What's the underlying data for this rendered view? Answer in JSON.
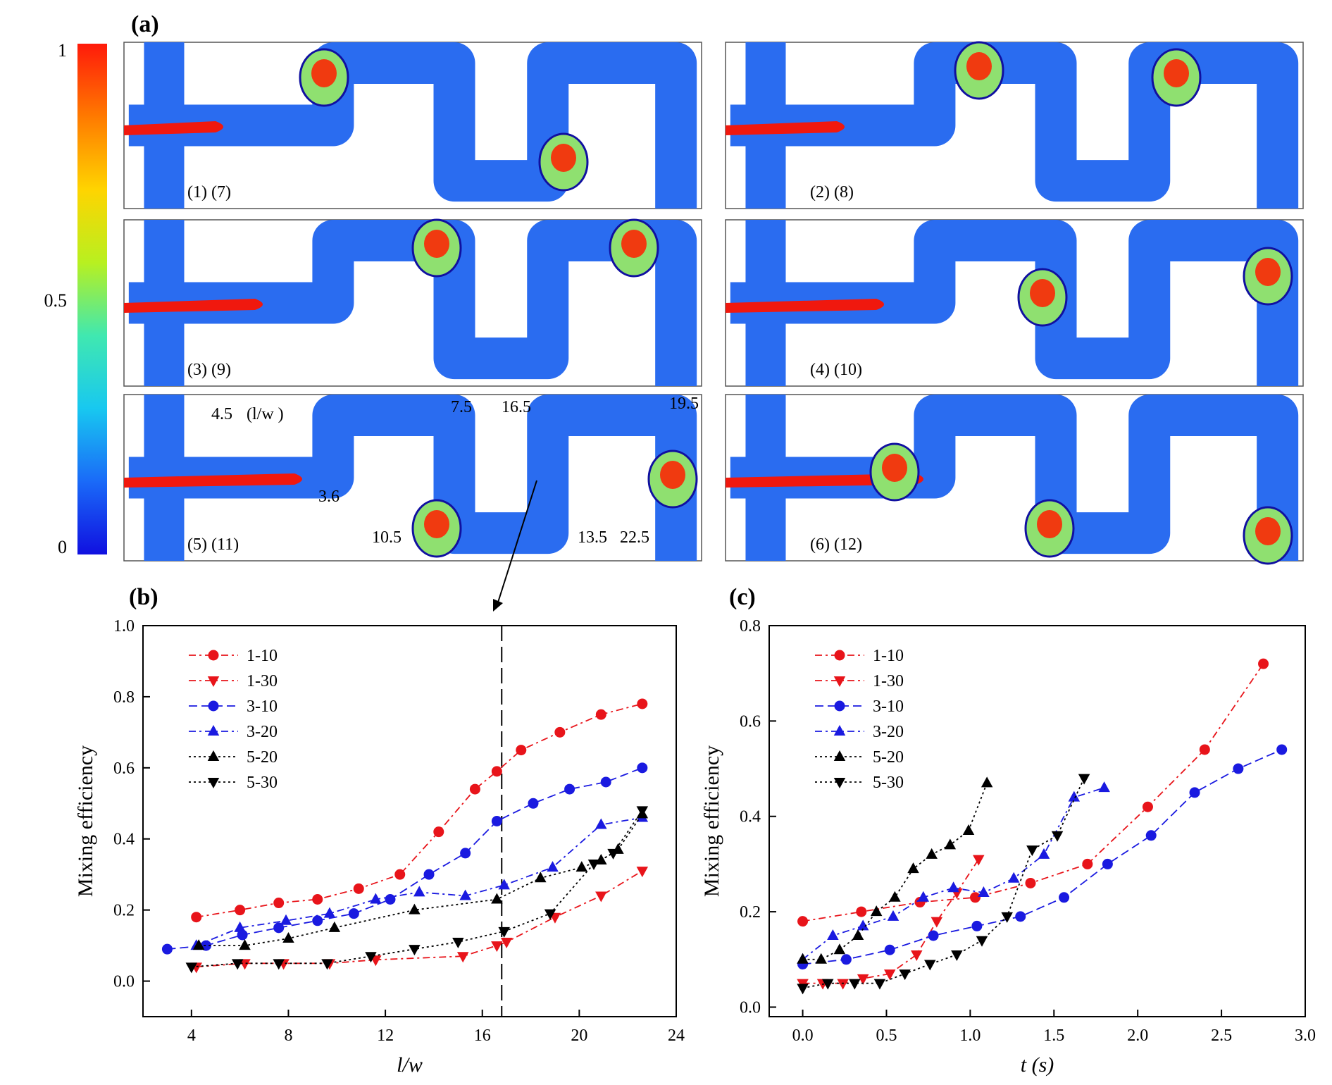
{
  "panel_labels": {
    "a": "(a)",
    "b": "(b)",
    "c": "(c)"
  },
  "colorbar": {
    "ticks": [
      "1",
      "0.5",
      "0"
    ],
    "stops": [
      "#ff1a0a",
      "#ff7a00",
      "#ffd400",
      "#b8f020",
      "#40e8b0",
      "#18c8f0",
      "#1a6af8",
      "#1010e0"
    ]
  },
  "images": [
    {
      "id": 1,
      "labels": [
        "(1)",
        "(7)"
      ]
    },
    {
      "id": 2,
      "labels": [
        "(2)",
        "(8)"
      ]
    },
    {
      "id": 3,
      "labels": [
        "(3)",
        "(9)"
      ]
    },
    {
      "id": 4,
      "labels": [
        "(4)",
        "(10)"
      ]
    },
    {
      "id": 5,
      "labels": [
        "(5)",
        "(11)"
      ],
      "annotations": [
        "4.5",
        "(l/w )",
        "3.6",
        "7.5",
        "10.5",
        "16.5",
        "13.5",
        "19.5",
        "22.5"
      ]
    },
    {
      "id": 6,
      "labels": [
        "(6)",
        "(12)"
      ]
    }
  ],
  "colors": {
    "red": "#e8141a",
    "blue": "#1a1ae0",
    "black": "#000000",
    "channel": "#2a6cf0"
  },
  "chart_data": [
    {
      "id": "b",
      "type": "line",
      "xlabel": "l/w",
      "ylabel": "Mixing efficiency",
      "xlim": [
        2,
        24
      ],
      "ylim": [
        -0.1,
        1.0
      ],
      "xticks": [
        "4",
        "8",
        "12",
        "16",
        "20",
        "24"
      ],
      "yticks": [
        "0.0",
        "0.2",
        "0.4",
        "0.6",
        "0.8",
        "1.0"
      ],
      "vline": 16.8,
      "legend_position": "top-left",
      "series": [
        {
          "name": "1-10",
          "color": "#e8141a",
          "marker": "circle",
          "dash": "dashdot",
          "x": [
            4.2,
            6.0,
            7.6,
            9.2,
            10.9,
            12.6,
            14.2,
            15.7,
            16.6,
            17.6,
            19.2,
            20.9,
            22.6
          ],
          "y": [
            0.18,
            0.2,
            0.22,
            0.23,
            0.26,
            0.3,
            0.42,
            0.54,
            0.59,
            0.65,
            0.7,
            0.75,
            0.78
          ]
        },
        {
          "name": "1-30",
          "color": "#e8141a",
          "marker": "triangle-down",
          "dash": "dashdot",
          "x": [
            4.2,
            6.2,
            7.8,
            9.7,
            11.6,
            15.2,
            16.6,
            17.0,
            19.0,
            20.9,
            22.6
          ],
          "y": [
            0.04,
            0.05,
            0.05,
            0.05,
            0.06,
            0.07,
            0.1,
            0.11,
            0.18,
            0.24,
            0.31
          ]
        },
        {
          "name": "3-10",
          "color": "#1a1ae0",
          "marker": "circle",
          "dash": "dash",
          "x": [
            3.0,
            4.6,
            6.1,
            7.6,
            9.2,
            10.7,
            12.2,
            13.8,
            15.3,
            16.6,
            18.1,
            19.6,
            21.1,
            22.6
          ],
          "y": [
            0.09,
            0.1,
            0.13,
            0.15,
            0.17,
            0.19,
            0.23,
            0.3,
            0.36,
            0.45,
            0.5,
            0.54,
            0.56,
            0.6
          ]
        },
        {
          "name": "3-20",
          "color": "#1a1ae0",
          "marker": "triangle-up",
          "dash": "dashdot",
          "x": [
            4.2,
            6.0,
            7.9,
            9.7,
            11.6,
            13.4,
            15.3,
            16.9,
            18.9,
            20.9,
            22.6
          ],
          "y": [
            0.1,
            0.15,
            0.17,
            0.19,
            0.23,
            0.25,
            0.24,
            0.27,
            0.32,
            0.44,
            0.46
          ]
        },
        {
          "name": "5-20",
          "color": "#000000",
          "marker": "triangle-up",
          "dash": "dot",
          "x": [
            4.3,
            6.2,
            8.0,
            9.9,
            13.2,
            16.6,
            18.4,
            20.1,
            20.9,
            21.6,
            22.6
          ],
          "y": [
            0.1,
            0.1,
            0.12,
            0.15,
            0.2,
            0.23,
            0.29,
            0.32,
            0.34,
            0.37,
            0.47
          ]
        },
        {
          "name": "5-30",
          "color": "#000000",
          "marker": "triangle-down",
          "dash": "dot",
          "x": [
            4.0,
            5.9,
            7.6,
            9.6,
            11.4,
            13.2,
            15.0,
            16.9,
            18.8,
            20.6,
            21.4,
            22.6
          ],
          "y": [
            0.04,
            0.05,
            0.05,
            0.05,
            0.07,
            0.09,
            0.11,
            0.14,
            0.19,
            0.33,
            0.36,
            0.48
          ]
        }
      ]
    },
    {
      "id": "c",
      "type": "line",
      "xlabel": "t (s)",
      "ylabel": "Mixing efficiency",
      "xlim": [
        -0.2,
        3.0
      ],
      "ylim": [
        -0.02,
        0.8
      ],
      "xticks": [
        "0.0",
        "0.5",
        "1.0",
        "1.5",
        "2.0",
        "2.5",
        "3.0"
      ],
      "yticks": [
        "0.0",
        "0.2",
        "0.4",
        "0.6",
        "0.8"
      ],
      "legend_position": "top-left",
      "series": [
        {
          "name": "1-10",
          "color": "#e8141a",
          "marker": "circle",
          "dash": "dashdot",
          "x": [
            0.0,
            0.35,
            0.7,
            1.03,
            1.36,
            1.7,
            2.06,
            2.4,
            2.75
          ],
          "y": [
            0.18,
            0.2,
            0.22,
            0.23,
            0.26,
            0.3,
            0.42,
            0.54,
            0.72
          ]
        },
        {
          "name": "1-30",
          "color": "#e8141a",
          "marker": "triangle-down",
          "dash": "dashdot",
          "x": [
            0.0,
            0.12,
            0.24,
            0.36,
            0.52,
            0.68,
            0.8,
            0.92,
            1.05
          ],
          "y": [
            0.05,
            0.05,
            0.05,
            0.06,
            0.07,
            0.11,
            0.18,
            0.24,
            0.31
          ]
        },
        {
          "name": "3-10",
          "color": "#1a1ae0",
          "marker": "circle",
          "dash": "dash",
          "x": [
            0.0,
            0.26,
            0.52,
            0.78,
            1.04,
            1.3,
            1.56,
            1.82,
            2.08,
            2.34,
            2.6,
            2.86
          ],
          "y": [
            0.09,
            0.1,
            0.12,
            0.15,
            0.17,
            0.19,
            0.23,
            0.3,
            0.36,
            0.45,
            0.5,
            0.54
          ]
        },
        {
          "name": "3-20",
          "color": "#1a1ae0",
          "marker": "triangle-up",
          "dash": "dashdot",
          "x": [
            0.0,
            0.18,
            0.36,
            0.54,
            0.72,
            0.9,
            1.08,
            1.26,
            1.44,
            1.62,
            1.8
          ],
          "y": [
            0.1,
            0.15,
            0.17,
            0.19,
            0.23,
            0.25,
            0.24,
            0.27,
            0.32,
            0.44,
            0.46
          ]
        },
        {
          "name": "5-20",
          "color": "#000000",
          "marker": "triangle-up",
          "dash": "dot",
          "x": [
            0.0,
            0.11,
            0.22,
            0.33,
            0.44,
            0.55,
            0.66,
            0.77,
            0.88,
            0.99,
            1.1
          ],
          "y": [
            0.1,
            0.1,
            0.12,
            0.15,
            0.2,
            0.23,
            0.29,
            0.32,
            0.34,
            0.37,
            0.47
          ]
        },
        {
          "name": "5-30",
          "color": "#000000",
          "marker": "triangle-down",
          "dash": "dot",
          "x": [
            0.0,
            0.15,
            0.31,
            0.46,
            0.61,
            0.76,
            0.92,
            1.07,
            1.22,
            1.37,
            1.52,
            1.68
          ],
          "y": [
            0.04,
            0.05,
            0.05,
            0.05,
            0.07,
            0.09,
            0.11,
            0.14,
            0.19,
            0.33,
            0.36,
            0.48
          ]
        }
      ]
    }
  ]
}
